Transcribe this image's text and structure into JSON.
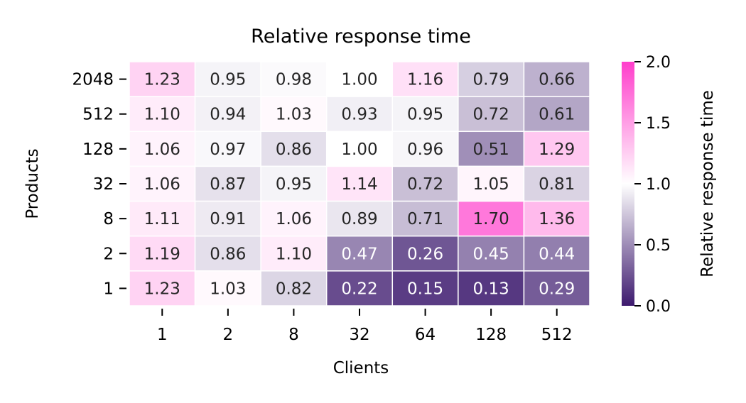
{
  "chart_data": {
    "type": "heatmap",
    "title": "Relative response time",
    "xlabel": "Clients",
    "ylabel": "Products",
    "x_categories": [
      "1",
      "2",
      "8",
      "32",
      "64",
      "128",
      "512"
    ],
    "y_categories": [
      "2048",
      "512",
      "128",
      "32",
      "8",
      "2",
      "1"
    ],
    "values": [
      [
        1.23,
        0.95,
        0.98,
        1.0,
        1.16,
        0.79,
        0.66
      ],
      [
        1.1,
        0.94,
        1.03,
        0.93,
        0.95,
        0.72,
        0.61
      ],
      [
        1.06,
        0.97,
        0.86,
        1.0,
        0.96,
        0.51,
        1.29
      ],
      [
        1.06,
        0.87,
        0.95,
        1.14,
        0.72,
        1.05,
        0.81
      ],
      [
        1.11,
        0.91,
        1.06,
        0.89,
        0.71,
        1.7,
        1.36
      ],
      [
        1.19,
        0.86,
        1.1,
        0.47,
        0.26,
        0.45,
        0.44
      ],
      [
        1.23,
        1.03,
        0.82,
        0.22,
        0.15,
        0.13,
        0.29
      ]
    ],
    "colorbar": {
      "label": "Relative response time",
      "range": [
        0.0,
        2.0
      ],
      "ticks": [
        "0.0",
        "0.5",
        "1.0",
        "1.5",
        "2.0"
      ],
      "colors": {
        "low": "#3d1a6e",
        "mid": "#ffffff",
        "high": "#ff3ecb"
      }
    },
    "grid": false,
    "legend": "colorbar-right"
  }
}
